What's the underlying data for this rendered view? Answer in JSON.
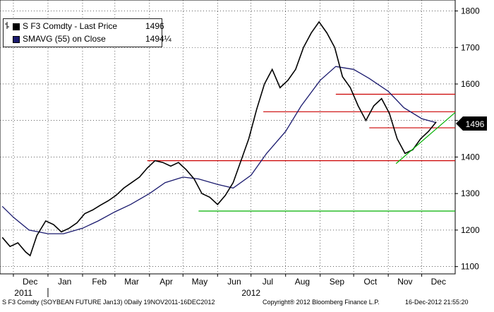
{
  "legend": {
    "series1_label": "S F3 Comdty - Last Price",
    "series1_value": "1496",
    "series2_label": "SMAVG (55) on Close",
    "series2_value": "1494¼"
  },
  "price_label": "1496",
  "footer": {
    "left": "S F3 Comdty (SOYBEAN FUTURE   Jan13) 0Daily 19NOV2011-16DEC2012",
    "middle": "Copyright® 2012 Bloomberg Finance L.P.",
    "right": "16-Dec-2012 21:55:20"
  },
  "colors": {
    "price": "#000000",
    "sma": "#1a1a6e",
    "resistance": "#cc0000",
    "support": "#00b000",
    "trend": "#00b000",
    "grid": "#000000"
  },
  "chart_data": {
    "type": "line",
    "title": "",
    "xlabel": "",
    "ylabel": "",
    "ylim": [
      1080,
      1830
    ],
    "y_ticks": [
      1100,
      1200,
      1300,
      1400,
      1500,
      1600,
      1700,
      1800
    ],
    "x_tick_labels": [
      "Dec",
      "Jan",
      "Feb",
      "Mar",
      "Apr",
      "May",
      "Jun",
      "Jul",
      "Aug",
      "Sep",
      "Oct",
      "Nov",
      "Dec"
    ],
    "year_labels": [
      "2011",
      "2012"
    ],
    "grid": true,
    "legend_position": "top-left",
    "series": [
      {
        "name": "S F3 Comdty - Last Price",
        "points": [
          [
            "2011-11-21",
            1180
          ],
          [
            "2011-11-28",
            1155
          ],
          [
            "2011-12-05",
            1165
          ],
          [
            "2011-12-12",
            1140
          ],
          [
            "2011-12-16",
            1130
          ],
          [
            "2011-12-22",
            1185
          ],
          [
            "2011-12-30",
            1225
          ],
          [
            "2012-01-06",
            1215
          ],
          [
            "2012-01-13",
            1195
          ],
          [
            "2012-01-20",
            1205
          ],
          [
            "2012-01-27",
            1220
          ],
          [
            "2012-02-03",
            1245
          ],
          [
            "2012-02-10",
            1255
          ],
          [
            "2012-02-17",
            1268
          ],
          [
            "2012-02-24",
            1280
          ],
          [
            "2012-03-02",
            1295
          ],
          [
            "2012-03-09",
            1315
          ],
          [
            "2012-03-16",
            1330
          ],
          [
            "2012-03-23",
            1345
          ],
          [
            "2012-03-30",
            1370
          ],
          [
            "2012-04-06",
            1390
          ],
          [
            "2012-04-13",
            1385
          ],
          [
            "2012-04-20",
            1375
          ],
          [
            "2012-04-27",
            1385
          ],
          [
            "2012-05-04",
            1365
          ],
          [
            "2012-05-11",
            1340
          ],
          [
            "2012-05-18",
            1300
          ],
          [
            "2012-05-25",
            1290
          ],
          [
            "2012-06-01",
            1270
          ],
          [
            "2012-06-08",
            1295
          ],
          [
            "2012-06-15",
            1330
          ],
          [
            "2012-06-22",
            1390
          ],
          [
            "2012-06-29",
            1450
          ],
          [
            "2012-07-06",
            1530
          ],
          [
            "2012-07-13",
            1600
          ],
          [
            "2012-07-20",
            1640
          ],
          [
            "2012-07-27",
            1590
          ],
          [
            "2012-08-03",
            1610
          ],
          [
            "2012-08-10",
            1640
          ],
          [
            "2012-08-17",
            1700
          ],
          [
            "2012-08-24",
            1740
          ],
          [
            "2012-08-31",
            1770
          ],
          [
            "2012-09-07",
            1740
          ],
          [
            "2012-09-14",
            1700
          ],
          [
            "2012-09-21",
            1620
          ],
          [
            "2012-09-28",
            1590
          ],
          [
            "2012-10-05",
            1540
          ],
          [
            "2012-10-12",
            1500
          ],
          [
            "2012-10-19",
            1540
          ],
          [
            "2012-10-26",
            1560
          ],
          [
            "2012-11-02",
            1520
          ],
          [
            "2012-11-09",
            1450
          ],
          [
            "2012-11-16",
            1410
          ],
          [
            "2012-11-23",
            1420
          ],
          [
            "2012-11-30",
            1450
          ],
          [
            "2012-12-07",
            1470
          ],
          [
            "2012-12-14",
            1496
          ]
        ]
      },
      {
        "name": "SMAVG (55) on Close",
        "points": [
          [
            "2011-11-21",
            1265
          ],
          [
            "2011-12-01",
            1235
          ],
          [
            "2011-12-15",
            1200
          ],
          [
            "2012-01-01",
            1190
          ],
          [
            "2012-01-15",
            1190
          ],
          [
            "2012-02-01",
            1205
          ],
          [
            "2012-02-15",
            1225
          ],
          [
            "2012-03-01",
            1250
          ],
          [
            "2012-03-15",
            1270
          ],
          [
            "2012-04-01",
            1300
          ],
          [
            "2012-04-15",
            1330
          ],
          [
            "2012-05-01",
            1345
          ],
          [
            "2012-05-15",
            1340
          ],
          [
            "2012-06-01",
            1325
          ],
          [
            "2012-06-15",
            1315
          ],
          [
            "2012-07-01",
            1350
          ],
          [
            "2012-07-15",
            1410
          ],
          [
            "2012-08-01",
            1470
          ],
          [
            "2012-08-15",
            1540
          ],
          [
            "2012-09-01",
            1610
          ],
          [
            "2012-09-15",
            1648
          ],
          [
            "2012-10-01",
            1640
          ],
          [
            "2012-10-15",
            1615
          ],
          [
            "2012-11-01",
            1580
          ],
          [
            "2012-11-15",
            1535
          ],
          [
            "2012-12-01",
            1505
          ],
          [
            "2012-12-14",
            1494
          ]
        ]
      }
    ],
    "horizontal_lines": [
      {
        "name": "resistance",
        "value": 1572,
        "x_start": "2012-09-15",
        "x_end": "2012-12-31"
      },
      {
        "name": "resistance",
        "value": 1524,
        "x_start": "2012-07-12",
        "x_end": "2012-12-31"
      },
      {
        "name": "resistance",
        "value": 1480,
        "x_start": "2012-10-15",
        "x_end": "2012-12-31"
      },
      {
        "name": "resistance",
        "value": 1390,
        "x_start": "2012-03-30",
        "x_end": "2012-12-31"
      },
      {
        "name": "support",
        "value": 1252,
        "x_start": "2012-05-15",
        "x_end": "2012-12-31"
      }
    ],
    "trendline": {
      "start": [
        "2012-11-08",
        1382
      ],
      "end": [
        "2012-12-31",
        1522
      ]
    }
  }
}
